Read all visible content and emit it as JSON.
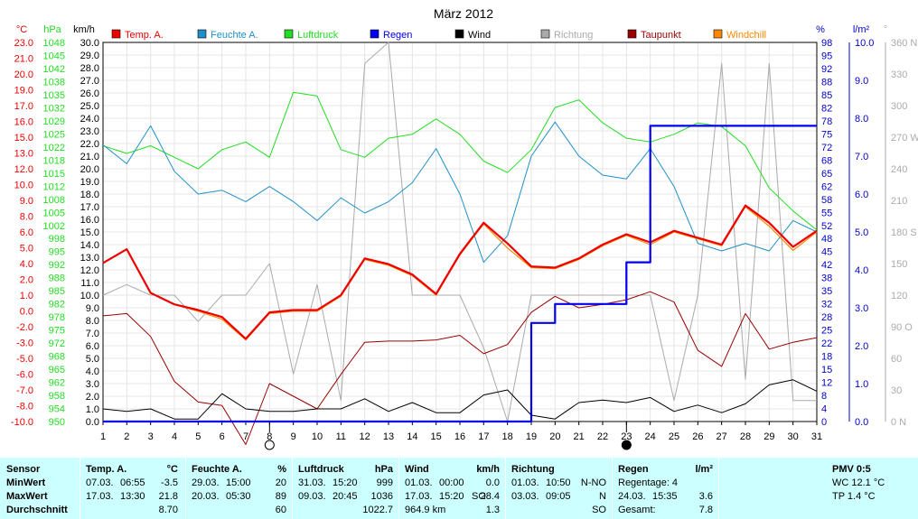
{
  "chart_data": {
    "type": "line",
    "title": "März 2012",
    "x": [
      1,
      2,
      3,
      4,
      5,
      6,
      7,
      8,
      9,
      10,
      11,
      12,
      13,
      14,
      15,
      16,
      17,
      18,
      19,
      20,
      21,
      22,
      23,
      24,
      25,
      26,
      27,
      28,
      29,
      30,
      31
    ],
    "legend": [
      {
        "name": "Temp. A.",
        "color": "#ee0000"
      },
      {
        "name": "Feuchte A.",
        "color": "#1e90c8"
      },
      {
        "name": "Luftdruck",
        "color": "#22dd22"
      },
      {
        "name": "Regen",
        "color": "#0000ee"
      },
      {
        "name": "Wind",
        "color": "#000000"
      },
      {
        "name": "Richtung",
        "color": "#aaaaaa"
      },
      {
        "name": "Taupunkt",
        "color": "#990000"
      },
      {
        "name": "Windchill",
        "color": "#ff8800"
      }
    ],
    "axes": {
      "temp": {
        "unit": "°C",
        "ylim": [
          -10,
          23
        ],
        "ticks": [
          "23.0",
          "21.0",
          "20.0",
          "19.0",
          "17.0",
          "16.0",
          "15.0",
          "13.0",
          "12.0",
          "10.0",
          "9.0",
          "8.0",
          "6.0",
          "5.0",
          "4.0",
          "2.0",
          "1.0",
          "0.0",
          "-2.0",
          "-3.0",
          "-5.0",
          "-6.0",
          "-7.0",
          "-8.0",
          "-10.0"
        ],
        "color": "#ee0000"
      },
      "pressure": {
        "unit": "hPa",
        "ylim": [
          950,
          1049
        ],
        "ticks": [
          "1048",
          "1045",
          "1042",
          "1038",
          "1035",
          "1032",
          "1029",
          "1025",
          "1022",
          "1018",
          "1015",
          "1012",
          "1008",
          "1005",
          "1002",
          "998",
          "995",
          "992",
          "988",
          "985",
          "982",
          "978",
          "975",
          "972",
          "968",
          "965",
          "962",
          "958",
          "954",
          "950"
        ],
        "color": "#22dd22"
      },
      "wind": {
        "unit": "km/h",
        "ylim": [
          0,
          30
        ],
        "ticks": [
          "30.0",
          "29.0",
          "28.0",
          "27.0",
          "26.0",
          "25.0",
          "24.0",
          "23.0",
          "22.0",
          "21.0",
          "20.0",
          "19.0",
          "18.0",
          "17.0",
          "16.0",
          "15.0",
          "14.0",
          "13.0",
          "12.0",
          "11.0",
          "10.0",
          "9.0",
          "8.0",
          "7.0",
          "6.0",
          "5.0",
          "4.0",
          "3.0",
          "2.0",
          "1.0",
          "0.0"
        ],
        "color": "#000000"
      },
      "humidity": {
        "unit": "%",
        "ylim": [
          0,
          100
        ],
        "ticks": [
          "98",
          "95",
          "92",
          "88",
          "85",
          "82",
          "78",
          "75",
          "72",
          "68",
          "65",
          "62",
          "58",
          "55",
          "52",
          "48",
          "45",
          "42",
          "38",
          "35",
          "32",
          "28",
          "25",
          "22",
          "18",
          "15",
          "12",
          "8",
          "4",
          "0"
        ],
        "color": "#0000cc"
      },
      "rain": {
        "unit": "l/m²",
        "ylim": [
          0,
          10
        ],
        "ticks": [
          "10.0",
          "9.0",
          "8.0",
          "7.0",
          "6.0",
          "5.0",
          "4.0",
          "3.0",
          "2.0",
          "1.0",
          "0.0"
        ],
        "color": "#0000cc"
      },
      "direction": {
        "unit": "°",
        "ylim": [
          0,
          360
        ],
        "ticks": [
          "360 N",
          "330",
          "300",
          "270 W",
          "240",
          "210",
          "180 S",
          "150",
          "120",
          "90 O",
          "60",
          "30",
          "0 N"
        ],
        "color": "#999999"
      }
    },
    "series": [
      {
        "name": "Temp. A.",
        "axis": "temp",
        "color": "#ee0000",
        "width": 2.2,
        "values": [
          3.8,
          5.0,
          1.2,
          0.2,
          -0.3,
          -0.9,
          -2.8,
          -0.5,
          -0.3,
          -0.3,
          1.0,
          4.2,
          3.7,
          2.8,
          1.1,
          4.6,
          7.3,
          5.5,
          3.5,
          3.4,
          4.2,
          5.4,
          6.3,
          5.6,
          6.6,
          6.0,
          5.4,
          8.8,
          7.3,
          5.2,
          6.6
        ]
      },
      {
        "name": "Windchill",
        "axis": "temp",
        "color": "#ff8800",
        "width": 1.2,
        "values": [
          3.8,
          5.0,
          1.2,
          0.2,
          -0.4,
          -1.1,
          -2.9,
          -0.6,
          -0.4,
          -0.4,
          0.9,
          4.1,
          3.6,
          2.7,
          1.0,
          4.5,
          7.2,
          5.1,
          3.4,
          3.3,
          4.1,
          5.3,
          6.2,
          5.4,
          6.5,
          5.9,
          5.3,
          8.7,
          7.0,
          4.9,
          6.5
        ]
      },
      {
        "name": "Taupunkt",
        "axis": "temp",
        "color": "#990000",
        "width": 1,
        "values": [
          -0.8,
          -0.6,
          -2.6,
          -6.5,
          -8.3,
          -8.6,
          -12.0,
          -6.7,
          -7.8,
          -8.9,
          -5.9,
          -3.1,
          -3.0,
          -3.0,
          -2.9,
          -2.5,
          -4.1,
          -3.3,
          -0.5,
          0.9,
          -0.1,
          0.2,
          0.6,
          1.3,
          0.4,
          -3.8,
          -5.2,
          -0.6,
          -3.7,
          -3.1,
          -2.7
        ]
      },
      {
        "name": "Feuchte A.",
        "axis": "humidity",
        "color": "#1e90c8",
        "width": 1,
        "values": [
          73,
          68,
          78,
          66,
          60,
          61,
          58,
          62,
          58,
          53,
          59,
          55,
          58,
          63,
          72,
          60,
          42,
          49,
          70,
          79,
          70,
          65,
          64,
          72,
          62,
          47,
          45,
          47,
          45,
          53,
          50
        ]
      },
      {
        "name": "Luftdruck",
        "axis": "pressure",
        "color": "#22dd22",
        "width": 1,
        "values": [
          1022,
          1020,
          1022,
          1019,
          1016,
          1021,
          1023,
          1019,
          1036,
          1035,
          1021,
          1019,
          1024,
          1025,
          1029,
          1025,
          1018,
          1015,
          1021,
          1032,
          1034,
          1028,
          1024,
          1023,
          1025,
          1028,
          1027,
          1022,
          1011,
          1005,
          1000
        ]
      },
      {
        "name": "Wind",
        "axis": "wind",
        "color": "#000000",
        "width": 1,
        "values": [
          1.0,
          0.8,
          1.0,
          0.2,
          0.2,
          2.2,
          1.0,
          0.8,
          0.8,
          1.0,
          1.0,
          1.8,
          0.8,
          1.5,
          0.7,
          0.7,
          2.1,
          2.5,
          0.5,
          0.2,
          1.5,
          1.7,
          1.5,
          1.9,
          0.8,
          1.3,
          0.7,
          1.4,
          2.9,
          3.3,
          2.4
        ]
      },
      {
        "name": "Richtung",
        "axis": "direction",
        "color": "#aaaaaa",
        "width": 1,
        "values": [
          120,
          130,
          120,
          120,
          95,
          120,
          120,
          150,
          45,
          130,
          20,
          340,
          360,
          120,
          120,
          120,
          70,
          0,
          120,
          120,
          120,
          120,
          120,
          120,
          20,
          120,
          340,
          40,
          340,
          20,
          20
        ]
      },
      {
        "name": "Regen",
        "axis": "rain",
        "color": "#0000ee",
        "width": 2.2,
        "step": true,
        "values": [
          0,
          0,
          0,
          0,
          0,
          0,
          0,
          0,
          0,
          0,
          0,
          0,
          0,
          0,
          0,
          0,
          0,
          0,
          2.6,
          3.1,
          3.1,
          3.1,
          4.2,
          7.8,
          7.8,
          7.8,
          7.8,
          7.8,
          7.8,
          7.8,
          7.8
        ]
      }
    ],
    "moon_phases": [
      {
        "day": 8,
        "phase": "full-moon"
      },
      {
        "day": 23,
        "phase": "new-moon"
      }
    ]
  },
  "stats": {
    "sensor": {
      "header": "Sensor",
      "rows": [
        "MinWert",
        "MaxWert",
        "Durchschnitt"
      ]
    },
    "temp": {
      "header": "Temp. A.",
      "unit": "°C",
      "min": {
        "date": "07.03.",
        "time": "06:55",
        "value": "-3.5"
      },
      "max": {
        "date": "17.03.",
        "time": "13:30",
        "value": "21.8"
      },
      "avg": "8.70"
    },
    "humidity": {
      "header": "Feuchte A.",
      "unit": "%",
      "min": {
        "date": "29.03.",
        "time": "15:00",
        "value": "20"
      },
      "max": {
        "date": "20.03.",
        "time": "05:30",
        "value": "89"
      },
      "avg": "60"
    },
    "pressure": {
      "header": "Luftdruck",
      "unit": "hPa",
      "min": {
        "date": "31.03.",
        "time": "15:20",
        "value": "999"
      },
      "max": {
        "date": "09.03.",
        "time": "20:45",
        "value": "1036"
      },
      "avg": "1022.7"
    },
    "wind": {
      "header": "Wind",
      "unit": "km/h",
      "min": {
        "date": "01.03.",
        "time": "00:00",
        "value": "0.0"
      },
      "max": {
        "date": "17.03.",
        "time": "15:20",
        "extra": "SO",
        "value": "28.4"
      },
      "avg_label": "964.9 km",
      "avg": "1.3"
    },
    "direction": {
      "header": "Richtung",
      "min": {
        "date": "01.03.",
        "time": "10:50",
        "value": "N-NO"
      },
      "max": {
        "date": "03.03.",
        "time": "09:05",
        "value": "N"
      },
      "avg": "SO"
    },
    "rain": {
      "header": "Regen",
      "unit": "l/m²",
      "line1": "Regentage: 4",
      "max": {
        "date": "24.03.",
        "time": "15:35",
        "value": "3.6"
      },
      "total_label": "Gesamt:",
      "total": "7.8"
    },
    "pmv": {
      "header": "PMV 0:5",
      "line1": "WC 12.1 °C",
      "line2": "TP 1.4 °C"
    }
  }
}
